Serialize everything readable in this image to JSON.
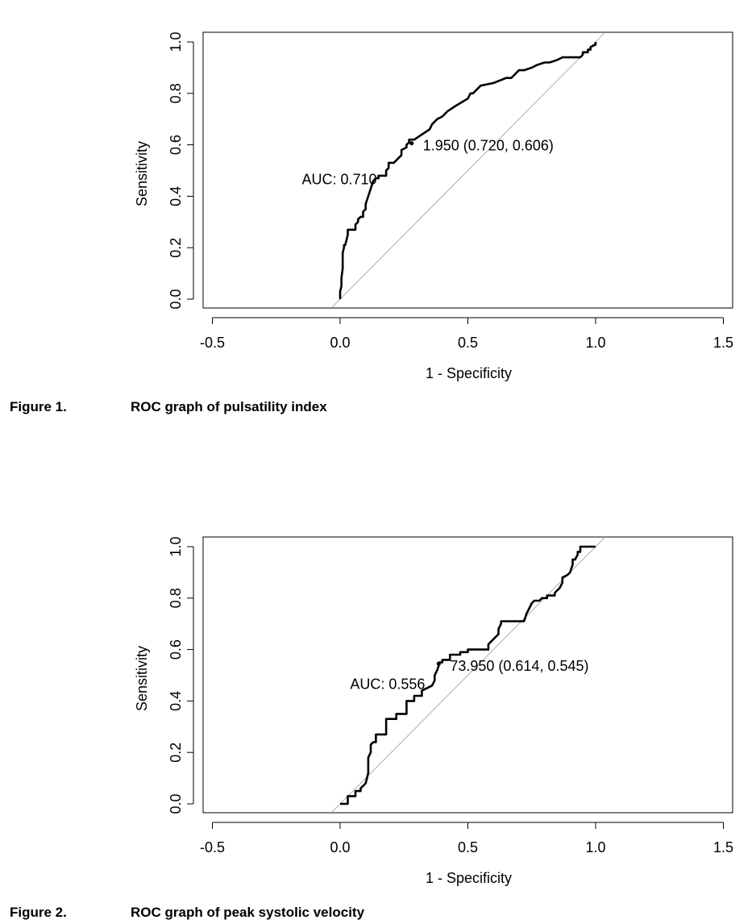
{
  "chart_data": [
    {
      "type": "line",
      "xlabel": "1 - Specificity",
      "ylabel": "Sensitivity",
      "xlim": [
        -0.5,
        1.5
      ],
      "ylim": [
        0,
        1
      ],
      "xticks": [
        "-0.5",
        "0.0",
        "0.5",
        "1.0",
        "1.5"
      ],
      "yticks": [
        "0.0",
        "0.2",
        "0.4",
        "0.6",
        "0.8",
        "1.0"
      ],
      "diagonal": true,
      "auc_label": "AUC: 0.710",
      "threshold_label": "1.950 (0.720, 0.606)",
      "threshold_point": {
        "x": 0.28,
        "y": 0.606
      },
      "series": [
        {
          "x": [
            0.0,
            0.0,
            0.005,
            0.005,
            0.01,
            0.01,
            0.015,
            0.015,
            0.02,
            0.03,
            0.03,
            0.06,
            0.06,
            0.07,
            0.07,
            0.08,
            0.09,
            0.09,
            0.1,
            0.1,
            0.11,
            0.12,
            0.13,
            0.14,
            0.15,
            0.15,
            0.18,
            0.18,
            0.19,
            0.19,
            0.21,
            0.24,
            0.24,
            0.26,
            0.26,
            0.27,
            0.27,
            0.28,
            0.29,
            0.32,
            0.35,
            0.36,
            0.38,
            0.4,
            0.42,
            0.45,
            0.5,
            0.51,
            0.52,
            0.55,
            0.6,
            0.65,
            0.67,
            0.7,
            0.72,
            0.75,
            0.77,
            0.8,
            0.82,
            0.85,
            0.87,
            0.9,
            0.94,
            0.95,
            0.95,
            0.97,
            0.97,
            0.98,
            0.98,
            1.0,
            1.0
          ],
          "y": [
            0.0,
            0.03,
            0.05,
            0.08,
            0.12,
            0.18,
            0.2,
            0.21,
            0.21,
            0.25,
            0.27,
            0.27,
            0.29,
            0.3,
            0.31,
            0.32,
            0.32,
            0.34,
            0.35,
            0.37,
            0.4,
            0.43,
            0.46,
            0.47,
            0.47,
            0.48,
            0.48,
            0.5,
            0.51,
            0.53,
            0.53,
            0.56,
            0.58,
            0.59,
            0.6,
            0.61,
            0.62,
            0.62,
            0.62,
            0.64,
            0.66,
            0.68,
            0.7,
            0.71,
            0.73,
            0.75,
            0.78,
            0.8,
            0.8,
            0.83,
            0.84,
            0.86,
            0.86,
            0.89,
            0.89,
            0.9,
            0.91,
            0.92,
            0.92,
            0.93,
            0.94,
            0.94,
            0.94,
            0.95,
            0.96,
            0.96,
            0.97,
            0.97,
            0.98,
            0.99,
            1.0
          ]
        }
      ]
    },
    {
      "type": "line",
      "xlabel": "1 - Specificity",
      "ylabel": "Sensitivity",
      "xlim": [
        -0.5,
        1.5
      ],
      "ylim": [
        0,
        1
      ],
      "xticks": [
        "-0.5",
        "0.0",
        "0.5",
        "1.0",
        "1.5"
      ],
      "yticks": [
        "0.0",
        "0.2",
        "0.4",
        "0.6",
        "0.8",
        "1.0"
      ],
      "diagonal": true,
      "auc_label": "AUC: 0.556",
      "threshold_label": "73.950 (0.614, 0.545)",
      "threshold_point": {
        "x": 0.386,
        "y": 0.545
      },
      "series": [
        {
          "x": [
            0.0,
            0.03,
            0.03,
            0.06,
            0.06,
            0.08,
            0.08,
            0.1,
            0.11,
            0.11,
            0.12,
            0.12,
            0.13,
            0.14,
            0.14,
            0.18,
            0.18,
            0.22,
            0.22,
            0.26,
            0.26,
            0.29,
            0.29,
            0.32,
            0.32,
            0.34,
            0.36,
            0.37,
            0.37,
            0.38,
            0.39,
            0.4,
            0.4,
            0.43,
            0.43,
            0.47,
            0.47,
            0.5,
            0.5,
            0.58,
            0.58,
            0.6,
            0.62,
            0.62,
            0.63,
            0.63,
            0.72,
            0.73,
            0.74,
            0.75,
            0.76,
            0.78,
            0.79,
            0.81,
            0.81,
            0.84,
            0.84,
            0.86,
            0.87,
            0.87,
            0.89,
            0.9,
            0.91,
            0.91,
            0.92,
            0.93,
            0.93,
            0.94,
            0.94,
            1.0
          ],
          "y": [
            0.0,
            0.0,
            0.03,
            0.03,
            0.05,
            0.05,
            0.06,
            0.08,
            0.12,
            0.18,
            0.2,
            0.23,
            0.24,
            0.24,
            0.27,
            0.27,
            0.33,
            0.33,
            0.35,
            0.35,
            0.4,
            0.4,
            0.42,
            0.42,
            0.44,
            0.45,
            0.46,
            0.48,
            0.5,
            0.52,
            0.55,
            0.55,
            0.56,
            0.56,
            0.58,
            0.58,
            0.59,
            0.59,
            0.6,
            0.6,
            0.62,
            0.64,
            0.66,
            0.68,
            0.7,
            0.71,
            0.71,
            0.74,
            0.76,
            0.78,
            0.79,
            0.79,
            0.8,
            0.8,
            0.81,
            0.81,
            0.82,
            0.84,
            0.86,
            0.88,
            0.89,
            0.9,
            0.93,
            0.95,
            0.95,
            0.97,
            0.98,
            0.98,
            1.0,
            1.0
          ]
        }
      ]
    }
  ],
  "captions": [
    {
      "number": "Figure 1.",
      "text": "ROC graph of pulsatility index"
    },
    {
      "number": "Figure 2.",
      "text": "ROC graph of peak systolic velocity"
    }
  ]
}
